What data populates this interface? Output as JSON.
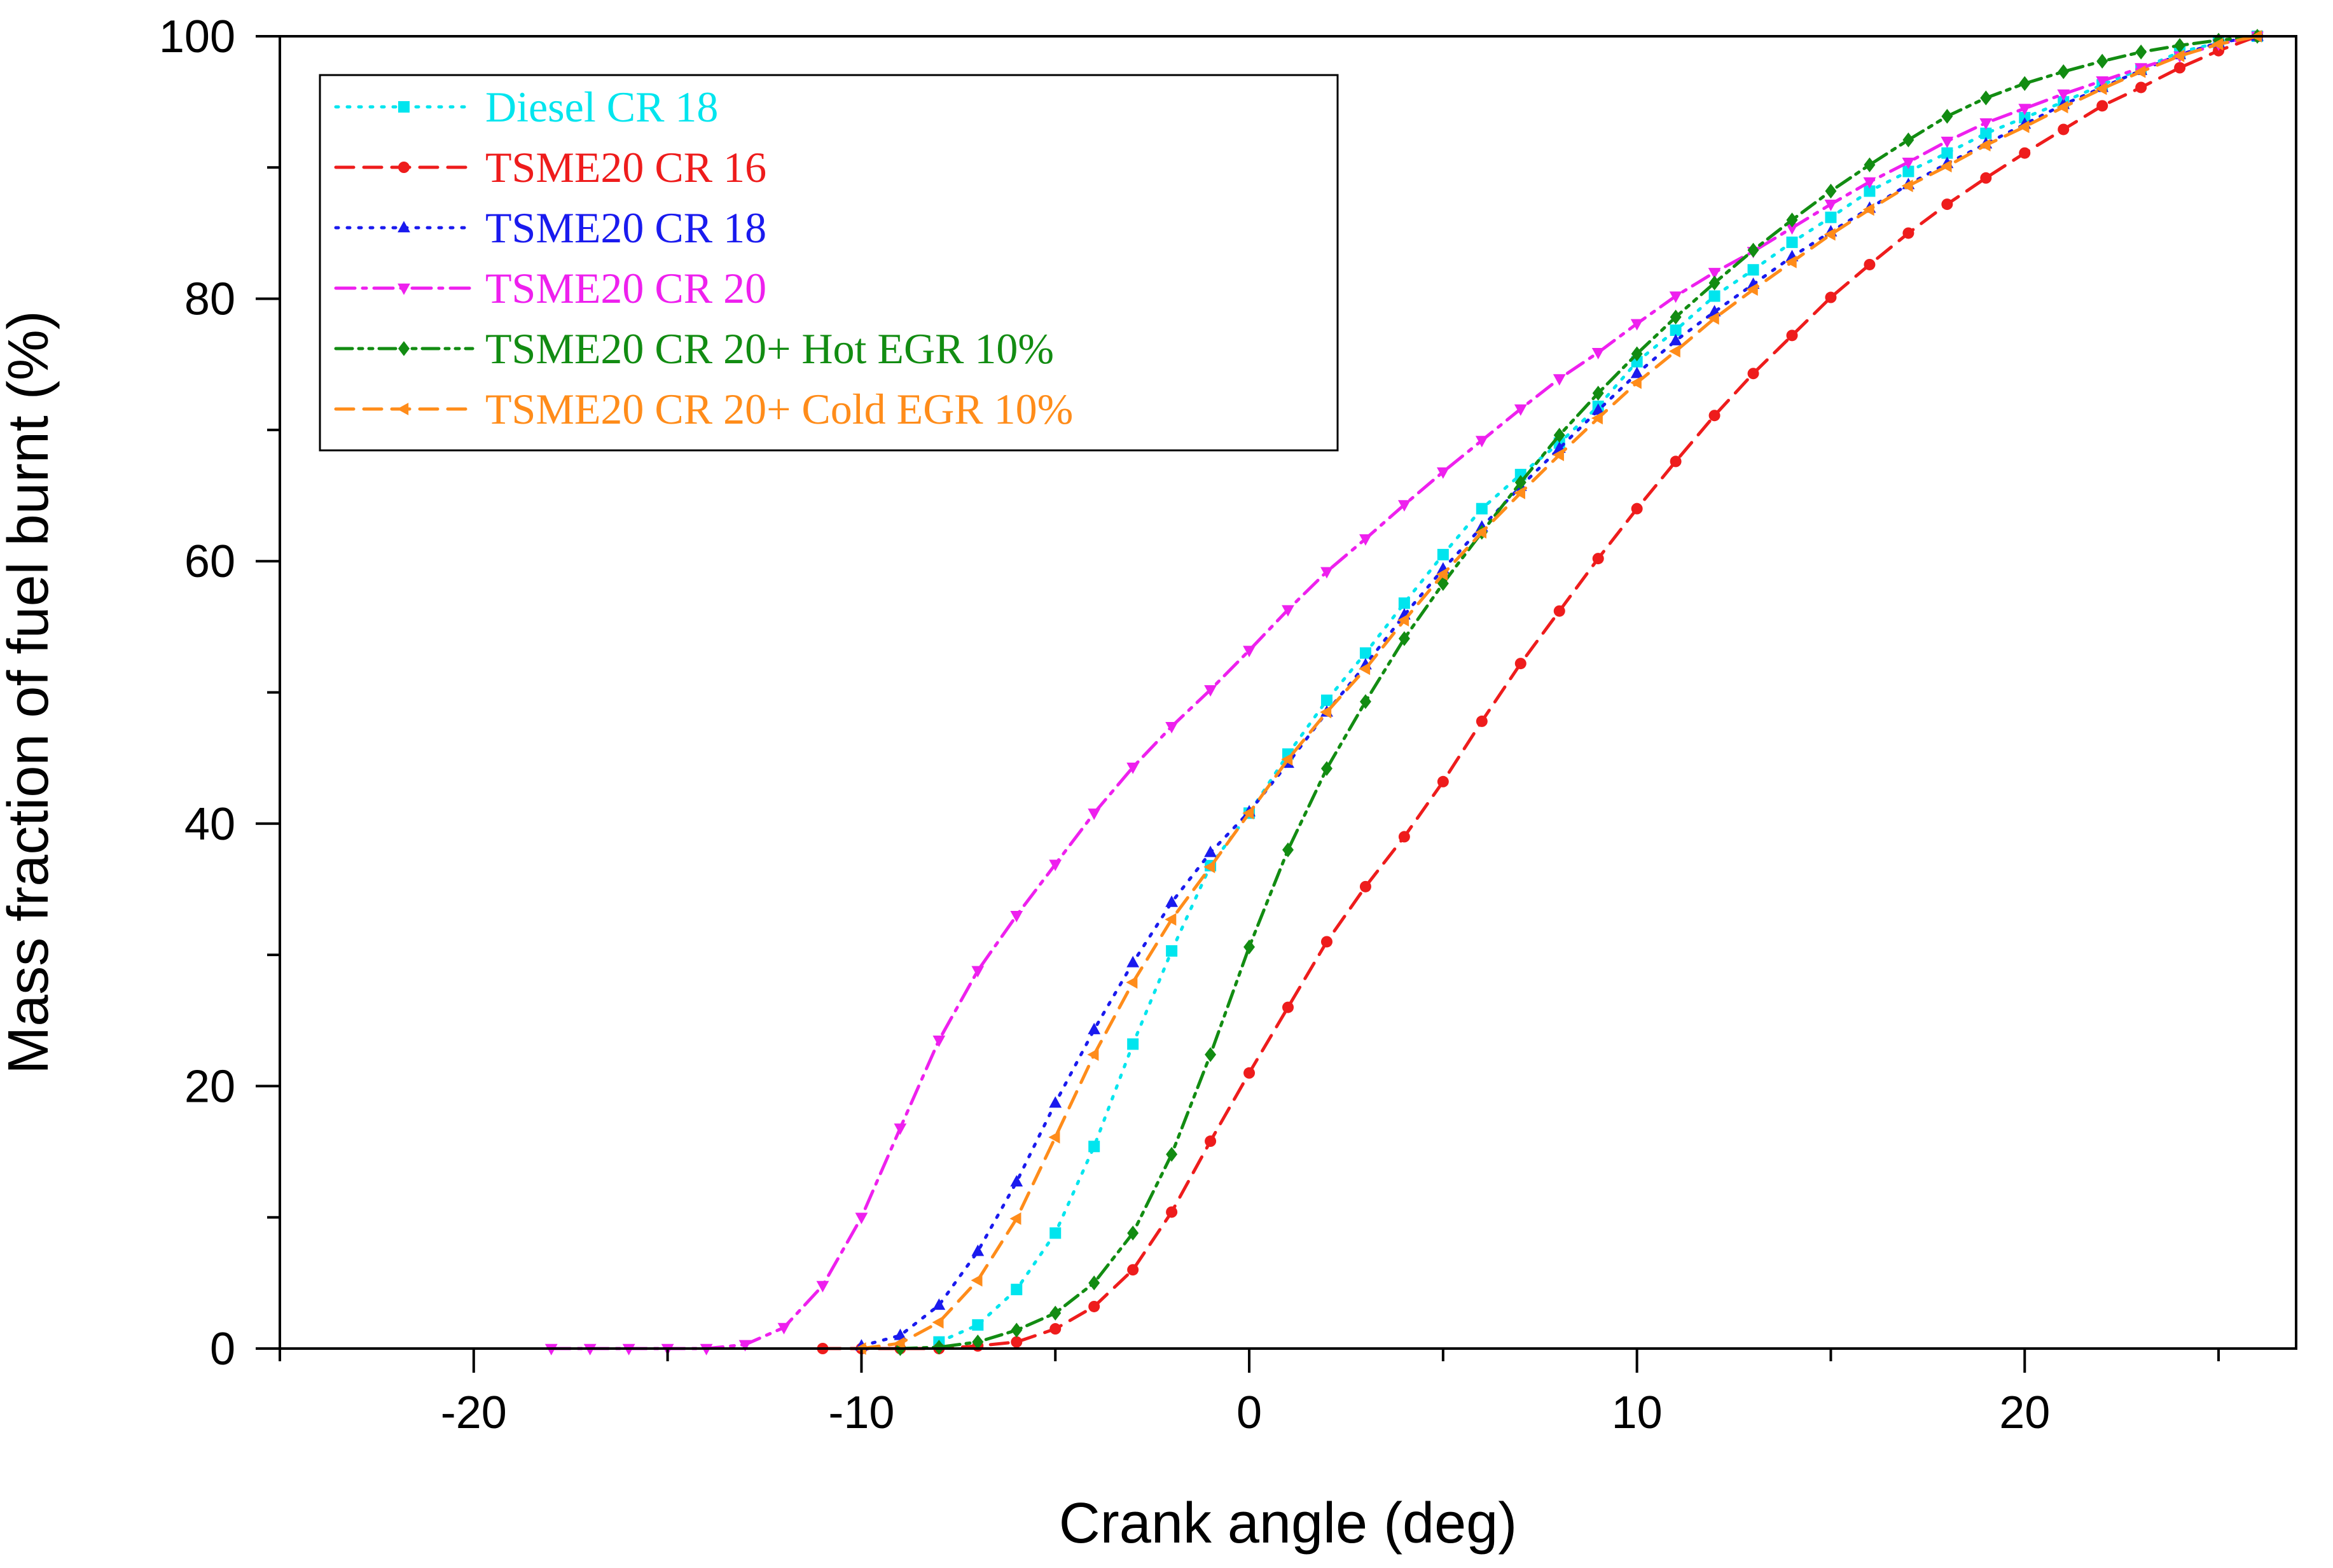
{
  "chart_data": {
    "type": "line",
    "title": "",
    "xlabel": "Crank angle (deg)",
    "ylabel": "Mass fraction of fuel burnt (%)",
    "xlim": [
      -25,
      27
    ],
    "ylim": [
      0,
      100
    ],
    "xticks": [
      -20,
      -10,
      0,
      10,
      20
    ],
    "xtick_labels": [
      "-20",
      "-10",
      "0",
      "10",
      "20"
    ],
    "yticks": [
      0,
      20,
      40,
      60,
      80,
      100
    ],
    "ytick_labels": [
      "0",
      "20",
      "40",
      "60",
      "80",
      "100"
    ],
    "grid": false,
    "legend_position": "top-left",
    "series": [
      {
        "name": "Diesel CR 18",
        "color": "#00e5ee",
        "marker": "square",
        "dash": "dot",
        "x": [
          -8,
          -7,
          -6,
          -5,
          -4,
          -3,
          -2,
          -1,
          0,
          1,
          2,
          3,
          4,
          5,
          6,
          7,
          8,
          9,
          10,
          11,
          12,
          13,
          14,
          15,
          16,
          17,
          18,
          19,
          20,
          21,
          22,
          23,
          24,
          25,
          26
        ],
        "y": [
          0.5,
          1.8,
          4.5,
          8.8,
          15.4,
          23.2,
          30.3,
          36.8,
          40.8,
          45.3,
          49.4,
          53.0,
          56.8,
          60.5,
          64.0,
          66.6,
          69.0,
          71.8,
          75.2,
          77.6,
          80.2,
          82.2,
          84.3,
          86.2,
          88.2,
          89.7,
          91.1,
          92.6,
          93.8,
          95.0,
          96.3,
          97.5,
          98.8,
          99.5,
          100
        ]
      },
      {
        "name": "TSME20 CR 16",
        "color": "#ee1c1c",
        "marker": "circle",
        "dash": "dash",
        "x": [
          -11,
          -10,
          -9,
          -8,
          -7,
          -6,
          -5,
          -4,
          -3,
          -2,
          -1,
          0,
          1,
          2,
          3,
          4,
          5,
          6,
          7,
          8,
          9,
          10,
          11,
          12,
          13,
          14,
          15,
          16,
          17,
          18,
          19,
          20,
          21,
          22,
          23,
          24,
          25,
          26
        ],
        "y": [
          0,
          0,
          0,
          0,
          0.2,
          0.5,
          1.5,
          3.2,
          6.0,
          10.4,
          15.8,
          21.0,
          26.0,
          31.0,
          35.2,
          39.0,
          43.2,
          47.8,
          52.2,
          56.2,
          60.2,
          64.0,
          67.6,
          71.1,
          74.3,
          77.2,
          80.1,
          82.6,
          85.0,
          87.2,
          89.2,
          91.1,
          92.9,
          94.7,
          96.1,
          97.6,
          98.9,
          100
        ]
      },
      {
        "name": "TSME20 CR 18",
        "color": "#1a1aee",
        "marker": "triangle-up",
        "dash": "dot",
        "x": [
          -10,
          -9,
          -8,
          -7,
          -6,
          -5,
          -4,
          -3,
          -2,
          -1,
          0,
          1,
          2,
          3,
          4,
          5,
          6,
          7,
          8,
          9,
          10,
          11,
          12,
          13,
          14,
          15,
          16,
          17,
          18,
          19,
          20,
          21,
          22,
          23,
          24,
          25,
          26
        ],
        "y": [
          0.2,
          1.0,
          3.3,
          7.4,
          12.7,
          18.7,
          24.3,
          29.4,
          34.0,
          37.8,
          40.9,
          44.6,
          48.5,
          52.1,
          55.9,
          59.4,
          62.6,
          65.7,
          68.6,
          71.5,
          74.3,
          76.8,
          79.0,
          81.1,
          83.2,
          85.1,
          86.9,
          88.7,
          90.3,
          91.8,
          93.3,
          94.8,
          96.1,
          97.4,
          98.6,
          99.5,
          100
        ]
      },
      {
        "name": "TSME20 CR 20",
        "color": "#ee20ee",
        "marker": "triangle-down",
        "dash": "dashdot",
        "x": [
          -18,
          -17,
          -16,
          -15,
          -14,
          -13,
          -12,
          -11,
          -10,
          -9,
          -8,
          -7,
          -6,
          -5,
          -4,
          -3,
          -2,
          -1,
          0,
          1,
          2,
          3,
          4,
          5,
          6,
          7,
          8,
          9,
          10,
          11,
          12,
          13,
          14,
          15,
          16,
          17,
          18,
          19,
          20,
          21,
          22,
          23,
          24,
          25,
          26
        ],
        "y": [
          0,
          0,
          0,
          0,
          0,
          0.3,
          1.6,
          4.8,
          10.0,
          16.8,
          23.5,
          28.8,
          33.0,
          36.9,
          40.8,
          44.3,
          47.4,
          50.2,
          53.2,
          56.3,
          59.2,
          61.7,
          64.3,
          66.8,
          69.2,
          71.6,
          73.9,
          75.9,
          78.1,
          80.2,
          82.0,
          83.6,
          85.4,
          87.2,
          88.9,
          90.4,
          92.0,
          93.4,
          94.5,
          95.6,
          96.6,
          97.6,
          98.5,
          99.4,
          100
        ]
      },
      {
        "name": "TSME20 CR 20+ Hot EGR 10%",
        "color": "#128c12",
        "marker": "diamond",
        "dash": "dashdotdot",
        "x": [
          -9,
          -8,
          -7,
          -6,
          -5,
          -4,
          -3,
          -2,
          -1,
          0,
          1,
          2,
          3,
          4,
          5,
          6,
          7,
          8,
          9,
          10,
          11,
          12,
          13,
          14,
          15,
          16,
          17,
          18,
          19,
          20,
          21,
          22,
          23,
          24,
          25,
          26
        ],
        "y": [
          0,
          0.1,
          0.5,
          1.4,
          2.7,
          5.0,
          8.8,
          14.8,
          22.4,
          30.6,
          38.0,
          44.2,
          49.3,
          54.1,
          58.3,
          62.2,
          66.0,
          69.6,
          72.8,
          75.8,
          78.6,
          81.2,
          83.7,
          86.0,
          88.2,
          90.2,
          92.1,
          93.9,
          95.3,
          96.4,
          97.3,
          98.1,
          98.8,
          99.3,
          99.7,
          100
        ]
      },
      {
        "name": "TSME20 CR 20+ Cold EGR 10%",
        "color": "#ff8c1a",
        "marker": "triangle-left",
        "dash": "dash",
        "x": [
          -10,
          -9,
          -8,
          -7,
          -6,
          -5,
          -4,
          -3,
          -2,
          -1,
          0,
          1,
          2,
          3,
          4,
          5,
          6,
          7,
          8,
          9,
          10,
          11,
          12,
          13,
          14,
          15,
          16,
          17,
          18,
          19,
          20,
          21,
          22,
          23,
          24,
          25,
          26
        ],
        "y": [
          0,
          0.4,
          2.0,
          5.2,
          9.9,
          16.1,
          22.4,
          27.9,
          32.7,
          36.7,
          40.8,
          44.9,
          48.5,
          51.8,
          55.5,
          59.0,
          62.2,
          65.2,
          68.1,
          70.9,
          73.6,
          76.0,
          78.5,
          80.7,
          82.8,
          84.9,
          86.8,
          88.6,
          90.1,
          91.7,
          93.1,
          94.6,
          96.0,
          97.3,
          98.5,
          99.4,
          100
        ]
      }
    ]
  }
}
